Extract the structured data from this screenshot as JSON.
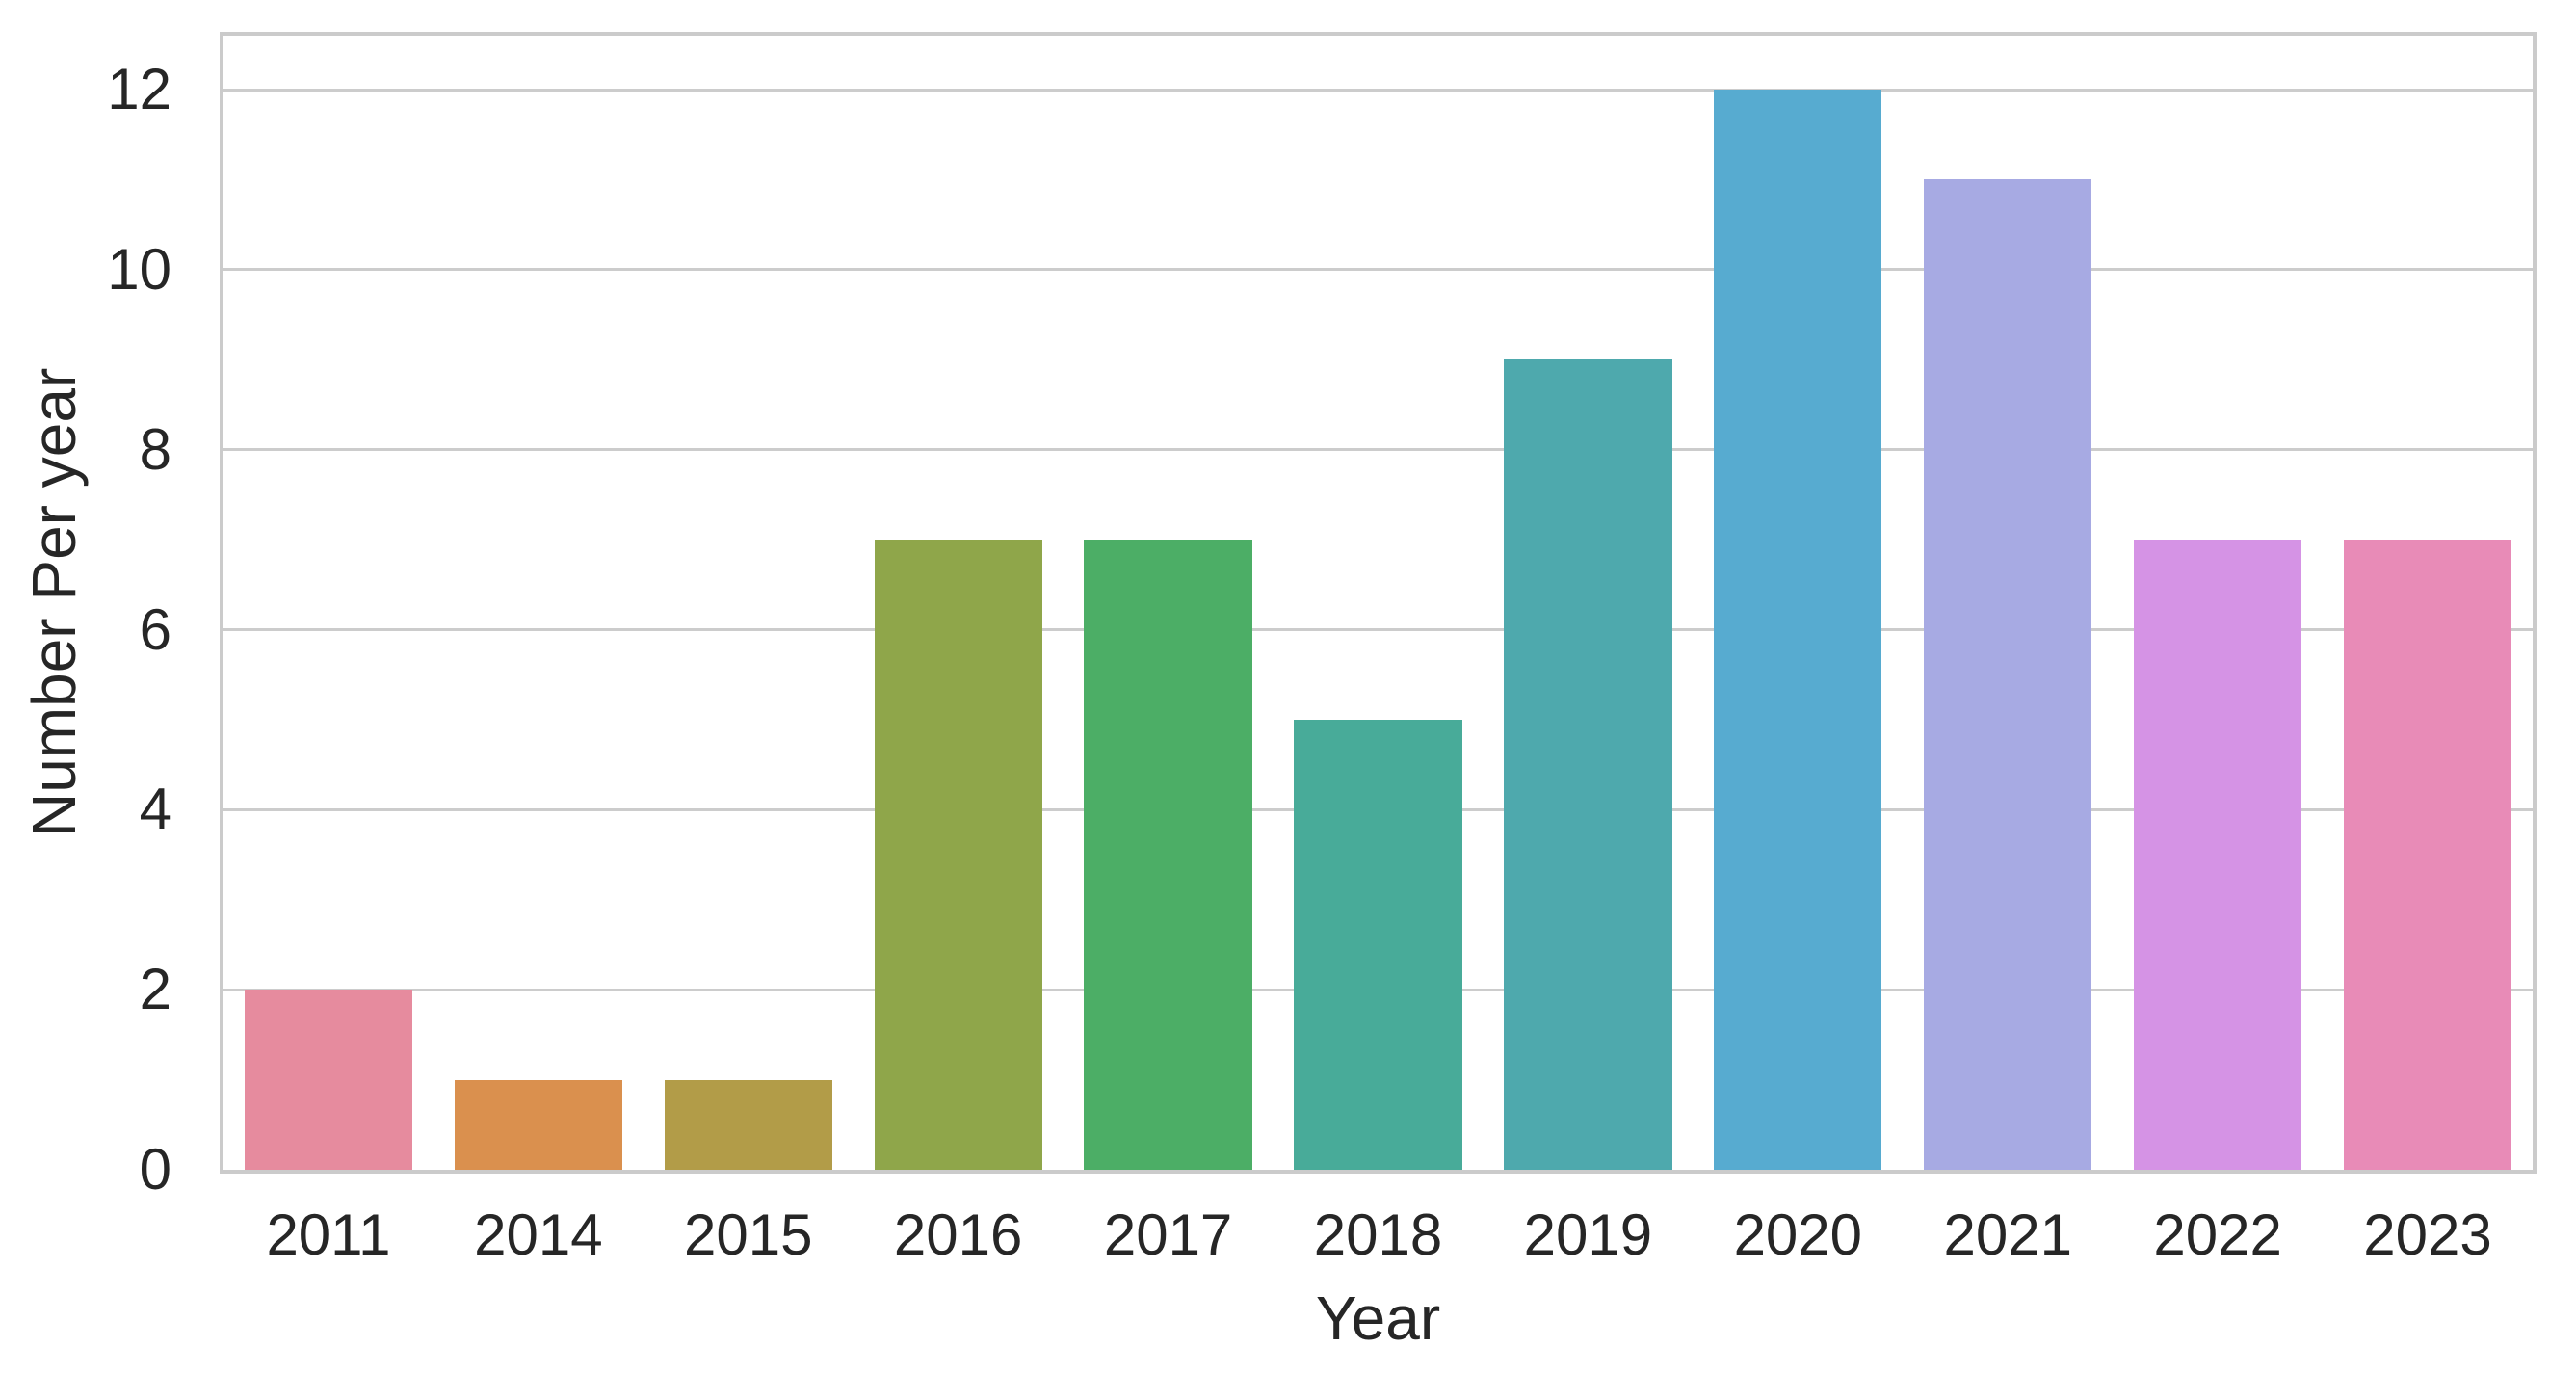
{
  "chart_data": {
    "type": "bar",
    "title": "",
    "xlabel": "Year",
    "ylabel": "Number Per year",
    "categories": [
      "2011",
      "2014",
      "2015",
      "2016",
      "2017",
      "2018",
      "2019",
      "2020",
      "2021",
      "2022",
      "2023"
    ],
    "values": [
      2,
      1,
      1,
      7,
      7,
      5,
      9,
      12,
      11,
      7,
      7
    ],
    "bar_colors": [
      "#e68b9e",
      "#da904e",
      "#b29c48",
      "#8fa64a",
      "#4cae66",
      "#48ab99",
      "#4ea9ad",
      "#57abd0",
      "#a7aae3",
      "#d593e5",
      "#e88bb7"
    ],
    "yticks": [
      0,
      2,
      4,
      6,
      8,
      10,
      12
    ],
    "ylim": [
      0,
      12.6
    ],
    "grid": true,
    "legend_position": "none",
    "bar_width_fraction": 0.8,
    "colors": {
      "grid": "#cccccc",
      "axis_border": "#cbcbcb",
      "text": "#262626",
      "background": "#ffffff"
    }
  }
}
